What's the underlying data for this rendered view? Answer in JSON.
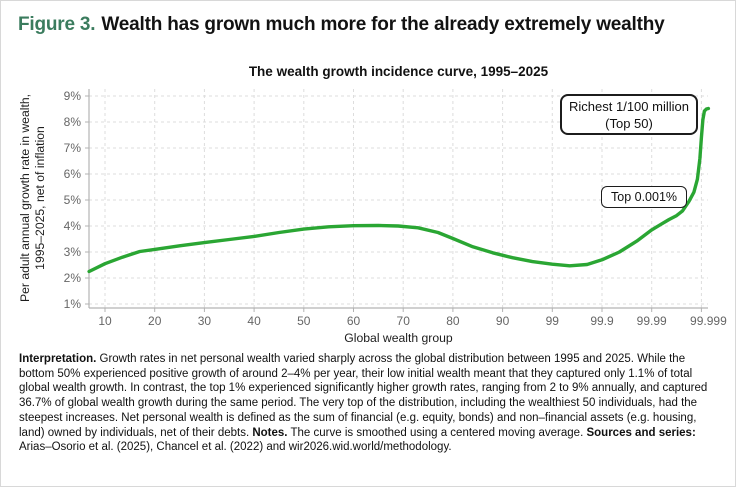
{
  "figure": {
    "label": "Figure 3.",
    "title": "Wealth has grown much more for the already extremely wealthy"
  },
  "chart_data": {
    "type": "line",
    "title": "The wealth growth incidence curve, 1995–2025",
    "xlabel": "Global wealth group",
    "ylabel_lines": [
      "Per adult annual growth rate in wealth,",
      "1995–2025, net of inflation"
    ],
    "x_tick_labels": [
      "10",
      "20",
      "30",
      "40",
      "50",
      "60",
      "70",
      "80",
      "90",
      "99",
      "99.9",
      "99.99",
      "99.999"
    ],
    "y_tick_labels": [
      "1%",
      "2%",
      "3%",
      "4%",
      "5%",
      "6%",
      "7%",
      "8%",
      "9%"
    ],
    "ylim": [
      1,
      9
    ],
    "grid": true,
    "line_color": "#2aa633",
    "x_scale_note": "quantile axis, ticks evenly spaced",
    "series": [
      {
        "name": "Wealth growth incidence curve 1995–2025",
        "points_x_in_tick_units_y_percent": [
          [
            -0.32,
            2.25
          ],
          [
            0,
            2.55
          ],
          [
            0.35,
            2.8
          ],
          [
            0.7,
            3.02
          ],
          [
            1,
            3.1
          ],
          [
            1.5,
            3.24
          ],
          [
            2,
            3.36
          ],
          [
            2.5,
            3.48
          ],
          [
            3,
            3.6
          ],
          [
            3.5,
            3.75
          ],
          [
            4,
            3.88
          ],
          [
            4.5,
            3.97
          ],
          [
            5,
            4.01
          ],
          [
            5.5,
            4.02
          ],
          [
            5.9,
            4.0
          ],
          [
            6.3,
            3.93
          ],
          [
            6.7,
            3.75
          ],
          [
            7,
            3.52
          ],
          [
            7.4,
            3.2
          ],
          [
            7.8,
            2.97
          ],
          [
            8.2,
            2.78
          ],
          [
            8.6,
            2.63
          ],
          [
            9,
            2.53
          ],
          [
            9.35,
            2.47
          ],
          [
            9.7,
            2.52
          ],
          [
            10,
            2.7
          ],
          [
            10.35,
            3.0
          ],
          [
            10.7,
            3.42
          ],
          [
            11,
            3.85
          ],
          [
            11.2,
            4.08
          ],
          [
            11.35,
            4.25
          ],
          [
            11.5,
            4.4
          ],
          [
            11.62,
            4.58
          ],
          [
            11.75,
            4.95
          ],
          [
            11.85,
            5.3
          ],
          [
            11.92,
            5.8
          ],
          [
            11.97,
            6.6
          ],
          [
            12.0,
            7.4
          ],
          [
            12.03,
            8.1
          ],
          [
            12.06,
            8.42
          ],
          [
            12.1,
            8.5
          ],
          [
            12.14,
            8.52
          ]
        ]
      }
    ],
    "annotations": [
      {
        "lines": [
          "Richest 1/100 million",
          "(Top 50)"
        ]
      },
      {
        "lines": [
          "Top 0.001%"
        ]
      }
    ]
  },
  "caption": {
    "interpretation_label": "Interpretation.",
    "interpretation_text": "Growth rates in net personal wealth varied sharply across the global distribution between 1995 and 2025. While the bottom 50% experienced positive growth of around 2–4% per year, their low initial wealth meant that they captured only 1.1% of total global wealth growth. In contrast, the top 1% experienced significantly higher growth rates, ranging from 2 to 9% annually, and captured 36.7% of global wealth growth during the same period. The very top of the distribution, including the wealthiest 50 individuals, had the steepest increases. Net personal wealth is defined as the sum of financial (e.g. equity, bonds) and non–financial assets (e.g. housing, land) owned by individuals, net of their debts.",
    "notes_label": "Notes.",
    "notes_text": "The curve is smoothed using a centered moving average.",
    "sources_label": "Sources and series:",
    "sources_text": "Arias–Osorio et al. (2025), Chancel et al. (2022) and wir2026.wid.world/methodology."
  }
}
